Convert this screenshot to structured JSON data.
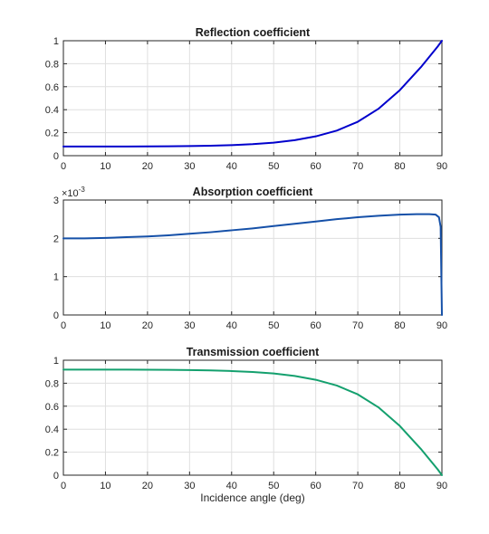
{
  "chart_data": [
    {
      "type": "line",
      "title": "Reflection coefficient",
      "xlabel": "",
      "ylabel": "",
      "xlim": [
        0,
        90
      ],
      "ylim": [
        0,
        1
      ],
      "xticks": [
        0,
        10,
        20,
        30,
        40,
        50,
        60,
        70,
        80,
        90
      ],
      "yticks": [
        0,
        0.2,
        0.4,
        0.6,
        0.8,
        1
      ],
      "ytick_labels": [
        "0",
        "0.2",
        "0.4",
        "0.6",
        "0.8",
        "1"
      ],
      "y_exponent": "",
      "grid": true,
      "color": "#0000cc",
      "x": [
        0,
        5,
        10,
        15,
        20,
        25,
        30,
        35,
        40,
        45,
        50,
        55,
        60,
        65,
        70,
        75,
        80,
        85,
        89,
        90
      ],
      "y": [
        0.08,
        0.08,
        0.08,
        0.08,
        0.081,
        0.082,
        0.084,
        0.087,
        0.092,
        0.1,
        0.113,
        0.135,
        0.168,
        0.218,
        0.295,
        0.41,
        0.57,
        0.77,
        0.95,
        1.0
      ]
    },
    {
      "type": "line",
      "title": "Absorption coefficient",
      "xlabel": "",
      "ylabel": "",
      "xlim": [
        0,
        90
      ],
      "ylim": [
        0,
        0.003
      ],
      "xticks": [
        0,
        10,
        20,
        30,
        40,
        50,
        60,
        70,
        80,
        90
      ],
      "yticks": [
        0,
        0.001,
        0.002,
        0.003
      ],
      "ytick_labels": [
        "0",
        "1",
        "2",
        "3"
      ],
      "y_exponent": "×10",
      "y_exponent_power": "-3",
      "grid": true,
      "color": "#1550a8",
      "x": [
        0,
        5,
        10,
        15,
        20,
        25,
        30,
        35,
        40,
        45,
        50,
        55,
        60,
        65,
        70,
        75,
        80,
        84,
        87,
        88.5,
        89.3,
        89.7,
        90
      ],
      "y": [
        0.002,
        0.002,
        0.00201,
        0.00203,
        0.00205,
        0.00208,
        0.00212,
        0.00216,
        0.00221,
        0.00226,
        0.00232,
        0.00238,
        0.00244,
        0.0025,
        0.00255,
        0.00259,
        0.00262,
        0.00263,
        0.00263,
        0.00262,
        0.00255,
        0.0023,
        0.0
      ]
    },
    {
      "type": "line",
      "title": "Transmission coefficient",
      "xlabel": "Incidence angle (deg)",
      "ylabel": "",
      "xlim": [
        0,
        90
      ],
      "ylim": [
        0,
        1
      ],
      "xticks": [
        0,
        10,
        20,
        30,
        40,
        50,
        60,
        70,
        80,
        90
      ],
      "yticks": [
        0,
        0.2,
        0.4,
        0.6,
        0.8,
        1
      ],
      "ytick_labels": [
        "0",
        "0.2",
        "0.4",
        "0.6",
        "0.8",
        "1"
      ],
      "y_exponent": "",
      "grid": true,
      "color": "#14a06e",
      "x": [
        0,
        5,
        10,
        15,
        20,
        25,
        30,
        35,
        40,
        45,
        50,
        55,
        60,
        65,
        70,
        75,
        80,
        85,
        89,
        90
      ],
      "y": [
        0.918,
        0.918,
        0.918,
        0.918,
        0.917,
        0.916,
        0.914,
        0.911,
        0.906,
        0.898,
        0.885,
        0.863,
        0.83,
        0.78,
        0.703,
        0.588,
        0.428,
        0.228,
        0.05,
        0.0
      ]
    }
  ]
}
